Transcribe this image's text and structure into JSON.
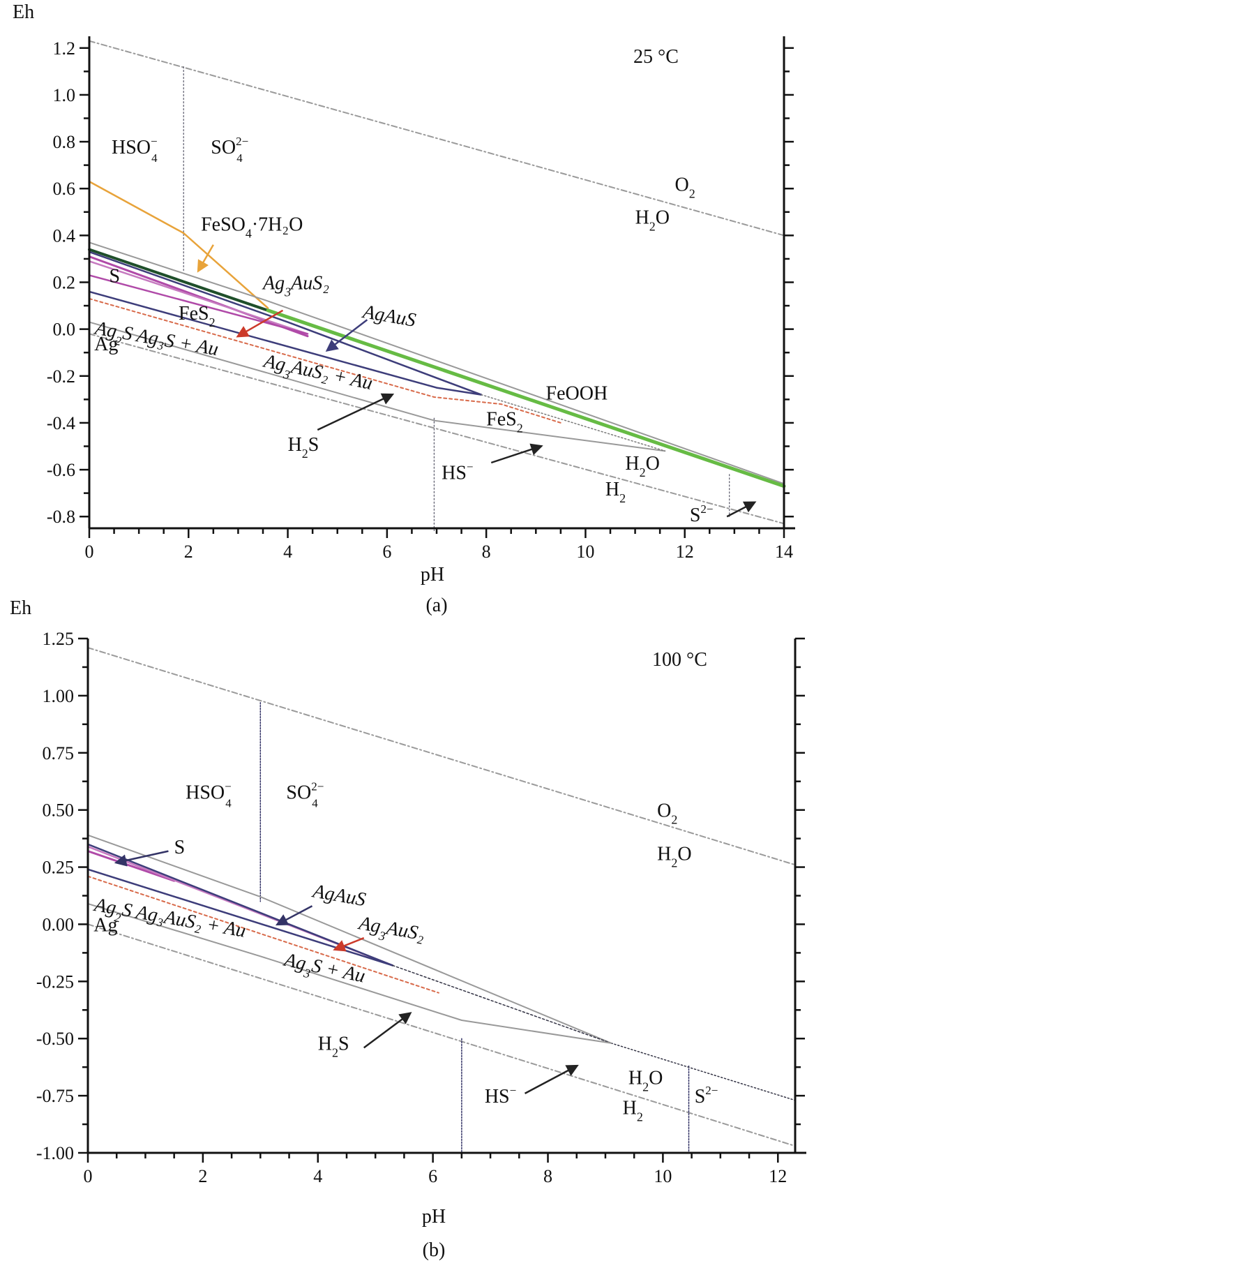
{
  "chart_data": [
    {
      "id": "a",
      "type": "line",
      "caption": "(a)",
      "temperature": "25 °C",
      "xlabel": "pH",
      "ylabel": "Eh",
      "xlim": [
        0,
        14
      ],
      "ylim": [
        -0.85,
        1.25
      ],
      "xticks": [
        0,
        2,
        4,
        6,
        8,
        10,
        12,
        14
      ],
      "yticks": [
        1.2,
        1.0,
        0.8,
        0.6,
        0.4,
        0.2,
        0.0,
        -0.2,
        -0.4,
        -0.6,
        -0.8
      ],
      "ytick_labels": [
        "1.2",
        "1.0",
        "0.8",
        "0.6",
        "0.4",
        "0.2",
        "0.0",
        "-0.2",
        "-0.4",
        "-0.6",
        "-0.8"
      ],
      "series": [
        {
          "color": "#9a9a9a",
          "dash": "8,4,2,4",
          "width": 2,
          "points": [
            [
              0,
              1.23
            ],
            [
              14,
              0.4
            ]
          ]
        },
        {
          "color": "#9a9a9a",
          "dash": "8,4,2,4",
          "width": 2,
          "points": [
            [
              0,
              -0.02
            ],
            [
              14,
              -0.83
            ]
          ]
        },
        {
          "color": "#555566",
          "dash": "2,3",
          "width": 1.2,
          "points": [
            [
              1.9,
              1.12
            ],
            [
              1.9,
              0.25
            ]
          ]
        },
        {
          "color": "#555566",
          "dash": "2,3",
          "width": 1.2,
          "points": [
            [
              6.95,
              -0.38
            ],
            [
              6.95,
              -0.86
            ]
          ]
        },
        {
          "color": "#555566",
          "dash": "2,3",
          "width": 1.2,
          "points": [
            [
              12.9,
              -0.62
            ],
            [
              12.9,
              -0.8
            ]
          ]
        },
        {
          "color": "#e8a33a",
          "dash": "",
          "width": 2.5,
          "points": [
            [
              0,
              0.63
            ],
            [
              1.9,
              0.41
            ],
            [
              3.6,
              0.09
            ]
          ]
        },
        {
          "color": "#999999",
          "dash": "",
          "width": 2,
          "points": [
            [
              0,
              0.37
            ],
            [
              3.6,
              0.12
            ],
            [
              14,
              -0.66
            ]
          ]
        },
        {
          "color": "#1f4f2a",
          "dash": "",
          "width": 4,
          "points": [
            [
              0,
              0.34
            ],
            [
              3.6,
              0.08
            ]
          ]
        },
        {
          "color": "#66bb44",
          "dash": "",
          "width": 5,
          "points": [
            [
              3.6,
              0.08
            ],
            [
              14,
              -0.67
            ]
          ]
        },
        {
          "color": "#b04aa8",
          "dash": "",
          "width": 3,
          "points": [
            [
              0,
              0.31
            ],
            [
              4.4,
              -0.03
            ]
          ]
        },
        {
          "color": "#c67ac0",
          "dash": "",
          "width": 2.5,
          "points": [
            [
              0,
              0.29
            ],
            [
              4.4,
              -0.02
            ]
          ]
        },
        {
          "color": "#b04aa8",
          "dash": "",
          "width": 2.5,
          "points": [
            [
              0,
              0.23
            ],
            [
              4.4,
              -0.02
            ]
          ]
        },
        {
          "color": "#3d3d7a",
          "dash": "",
          "width": 2.5,
          "points": [
            [
              0,
              0.33
            ],
            [
              4.0,
              0.03
            ],
            [
              7.9,
              -0.28
            ]
          ]
        },
        {
          "color": "#3d3d7a",
          "dash": "",
          "width": 2.5,
          "points": [
            [
              0,
              0.16
            ],
            [
              7.0,
              -0.25
            ],
            [
              7.9,
              -0.28
            ]
          ]
        },
        {
          "color": "#d86a4a",
          "dash": "4,4",
          "width": 2,
          "points": [
            [
              0,
              0.13
            ],
            [
              6.95,
              -0.29
            ],
            [
              8.3,
              -0.32
            ],
            [
              9.5,
              -0.4
            ]
          ]
        },
        {
          "color": "#999999",
          "dash": "",
          "width": 2,
          "points": [
            [
              0,
              0.03
            ],
            [
              6.95,
              -0.39
            ],
            [
              11.6,
              -0.52
            ]
          ]
        },
        {
          "color": "#7a7a7a",
          "dash": "2,3",
          "width": 1.5,
          "points": [
            [
              7.9,
              -0.28
            ],
            [
              11.6,
              -0.52
            ]
          ]
        }
      ],
      "labels": [
        {
          "text": "HSO",
          "sup": "−",
          "sub": "4",
          "x": 0.45,
          "y": 0.75
        },
        {
          "text": "SO",
          "sup": "2−",
          "sub": "4",
          "x": 2.45,
          "y": 0.75
        },
        {
          "text": "O",
          "sub": "2",
          "x": 11.8,
          "y": 0.59
        },
        {
          "text": "H",
          "sub": "2",
          "tail": "O",
          "x": 11.0,
          "y": 0.45
        },
        {
          "text": "FeSO",
          "sub": "4",
          "tail": "·7H₂O",
          "x": 2.25,
          "y": 0.42
        },
        {
          "text": "S",
          "x": 0.4,
          "y": 0.2
        },
        {
          "text": "Ag",
          "sub": "3",
          "tail": "AuS₂",
          "x": 3.5,
          "y": 0.17,
          "italic": true
        },
        {
          "text": "AgAuS",
          "x": 5.5,
          "y": 0.05,
          "italic": true,
          "rotate": 10
        },
        {
          "text": "FeS",
          "sub": "2",
          "x": 1.8,
          "y": 0.04
        },
        {
          "text": "Ag",
          "sub": "2",
          "tail": "S Ag₃S + Au",
          "x": 0.1,
          "y": -0.02,
          "italic": true,
          "rotate": 10
        },
        {
          "text": "Ag",
          "x": 0.1,
          "y": -0.09
        },
        {
          "text": "Ag",
          "sub": "3",
          "tail": "AuS₂ + Au",
          "x": 3.5,
          "y": -0.16,
          "italic": true,
          "rotate": 12
        },
        {
          "text": "FeOOH",
          "x": 9.2,
          "y": -0.3
        },
        {
          "text": "FeS",
          "sub": "2",
          "x": 8.0,
          "y": -0.41
        },
        {
          "text": "H",
          "sub": "2",
          "tail": "S",
          "x": 4.0,
          "y": -0.52
        },
        {
          "text": "HS",
          "sup": "−",
          "x": 7.1,
          "y": -0.64
        },
        {
          "text": "H",
          "sub": "2",
          "tail": "O",
          "x": 10.8,
          "y": -0.6
        },
        {
          "text": "H",
          "sub": "2",
          "x": 10.4,
          "y": -0.71
        },
        {
          "text": "S",
          "sup": "2−",
          "x": 12.1,
          "y": -0.82
        }
      ],
      "arrows": [
        {
          "color": "#e8a33a",
          "from": [
            2.5,
            0.36
          ],
          "to": [
            2.2,
            0.25
          ]
        },
        {
          "color": "#cc3a2a",
          "from": [
            3.9,
            0.08
          ],
          "to": [
            3.0,
            -0.03
          ]
        },
        {
          "color": "#3d3d7a",
          "from": [
            5.6,
            0.04
          ],
          "to": [
            4.8,
            -0.09
          ]
        },
        {
          "color": "#222222",
          "from": [
            4.6,
            -0.43
          ],
          "to": [
            6.1,
            -0.28
          ]
        },
        {
          "color": "#222222",
          "from": [
            8.1,
            -0.57
          ],
          "to": [
            9.1,
            -0.5
          ]
        },
        {
          "color": "#222222",
          "from": [
            12.85,
            -0.8
          ],
          "to": [
            13.4,
            -0.74
          ]
        }
      ]
    },
    {
      "id": "b",
      "type": "line",
      "caption": "(b)",
      "temperature": "100 °C",
      "xlabel": "pH",
      "ylabel": "Eh",
      "xlim": [
        0,
        12.3
      ],
      "ylim": [
        -1.0,
        1.25
      ],
      "xticks": [
        0,
        2,
        4,
        6,
        8,
        10,
        12
      ],
      "yticks": [
        1.25,
        1.0,
        0.75,
        0.5,
        0.25,
        0.0,
        -0.25,
        -0.5,
        -0.75,
        -1.0
      ],
      "ytick_labels": [
        "1.25",
        "1.00",
        "0.75",
        "0.50",
        "0.25",
        "0.00",
        "-0.25",
        "-0.50",
        "-0.75",
        "-1.00"
      ],
      "series": [
        {
          "color": "#9a9a9a",
          "dash": "8,4,2,4",
          "width": 2,
          "points": [
            [
              0,
              1.21
            ],
            [
              12.3,
              0.26
            ]
          ]
        },
        {
          "color": "#9a9a9a",
          "dash": "8,4,2,4",
          "width": 2,
          "points": [
            [
              0,
              0.0
            ],
            [
              12.3,
              -0.97
            ]
          ]
        },
        {
          "color": "#333366",
          "dash": "2,2",
          "width": 1.5,
          "points": [
            [
              3.0,
              0.97
            ],
            [
              3.0,
              0.1
            ]
          ]
        },
        {
          "color": "#333366",
          "dash": "2,2",
          "width": 1.5,
          "points": [
            [
              6.5,
              -0.5
            ],
            [
              6.5,
              -1.0
            ]
          ]
        },
        {
          "color": "#333366",
          "dash": "2,2",
          "width": 1.5,
          "points": [
            [
              10.45,
              -0.62
            ],
            [
              10.45,
              -1.0
            ]
          ]
        },
        {
          "color": "#999999",
          "dash": "",
          "width": 2,
          "points": [
            [
              0,
              0.39
            ],
            [
              3.0,
              0.12
            ],
            [
              9.1,
              -0.52
            ]
          ]
        },
        {
          "color": "#333344",
          "dash": "2,3",
          "width": 1.5,
          "points": [
            [
              9.1,
              -0.52
            ],
            [
              12.3,
              -0.77
            ]
          ]
        },
        {
          "color": "#b04aa8",
          "dash": "",
          "width": 3,
          "points": [
            [
              0,
              0.32
            ],
            [
              1.5,
              0.19
            ]
          ]
        },
        {
          "color": "#c67ac0",
          "dash": "",
          "width": 2.5,
          "points": [
            [
              0,
              0.34
            ],
            [
              5.3,
              -0.18
            ]
          ]
        },
        {
          "color": "#3d3d7a",
          "dash": "",
          "width": 2.5,
          "points": [
            [
              0,
              0.35
            ],
            [
              5.3,
              -0.18
            ]
          ]
        },
        {
          "color": "#3d3d7a",
          "dash": "",
          "width": 2.5,
          "points": [
            [
              0,
              0.24
            ],
            [
              5.3,
              -0.18
            ]
          ]
        },
        {
          "color": "#333344",
          "dash": "3,3",
          "width": 1.5,
          "points": [
            [
              5.3,
              -0.18
            ],
            [
              9.1,
              -0.52
            ]
          ]
        },
        {
          "color": "#d86a4a",
          "dash": "4,4",
          "width": 2,
          "points": [
            [
              0,
              0.21
            ],
            [
              6.1,
              -0.3
            ]
          ]
        },
        {
          "color": "#999999",
          "dash": "",
          "width": 2,
          "points": [
            [
              0,
              0.09
            ],
            [
              3.0,
              -0.14
            ],
            [
              6.5,
              -0.42
            ],
            [
              9.1,
              -0.52
            ]
          ]
        }
      ],
      "labels": [
        {
          "text": "HSO",
          "sup": "−",
          "sub": "4",
          "x": 1.7,
          "y": 0.55
        },
        {
          "text": "SO",
          "sup": "2−",
          "sub": "4",
          "x": 3.45,
          "y": 0.55
        },
        {
          "text": "O",
          "sub": "2",
          "x": 9.9,
          "y": 0.47
        },
        {
          "text": "H",
          "sub": "2",
          "tail": "O",
          "x": 9.9,
          "y": 0.28
        },
        {
          "text": "S",
          "x": 1.5,
          "y": 0.31
        },
        {
          "text": "AgAuS",
          "x": 3.9,
          "y": 0.12,
          "italic": true,
          "rotate": 10
        },
        {
          "text": "Ag",
          "sub": "3",
          "tail": "AuS₂",
          "x": 4.7,
          "y": -0.02,
          "italic": true,
          "rotate": 10
        },
        {
          "text": "Ag",
          "sub": "2",
          "tail": "S Ag₃AuS₂ + Au",
          "x": 0.1,
          "y": 0.06,
          "italic": true,
          "rotate": 10
        },
        {
          "text": "Ag",
          "x": 0.1,
          "y": -0.03
        },
        {
          "text": "Ag",
          "sub": "3",
          "tail": "S + Au",
          "x": 3.4,
          "y": -0.18,
          "italic": true,
          "rotate": 12
        },
        {
          "text": "H",
          "sub": "2",
          "tail": "S",
          "x": 4.0,
          "y": -0.55
        },
        {
          "text": "HS",
          "sup": "−",
          "x": 6.9,
          "y": -0.78
        },
        {
          "text": "H",
          "sub": "2",
          "tail": "O",
          "x": 9.4,
          "y": -0.7
        },
        {
          "text": "H",
          "sub": "2",
          "x": 9.3,
          "y": -0.83
        },
        {
          "text": "S",
          "sup": "2−",
          "x": 10.55,
          "y": -0.78
        }
      ],
      "arrows": [
        {
          "color": "#333366",
          "from": [
            1.4,
            0.32
          ],
          "to": [
            0.5,
            0.27
          ]
        },
        {
          "color": "#333366",
          "from": [
            3.9,
            0.08
          ],
          "to": [
            3.3,
            0.0
          ]
        },
        {
          "color": "#cc3a2a",
          "from": [
            4.8,
            -0.06
          ],
          "to": [
            4.3,
            -0.11
          ]
        },
        {
          "color": "#222222",
          "from": [
            4.8,
            -0.54
          ],
          "to": [
            5.6,
            -0.39
          ]
        },
        {
          "color": "#222222",
          "from": [
            7.6,
            -0.74
          ],
          "to": [
            8.5,
            -0.62
          ]
        }
      ]
    }
  ]
}
